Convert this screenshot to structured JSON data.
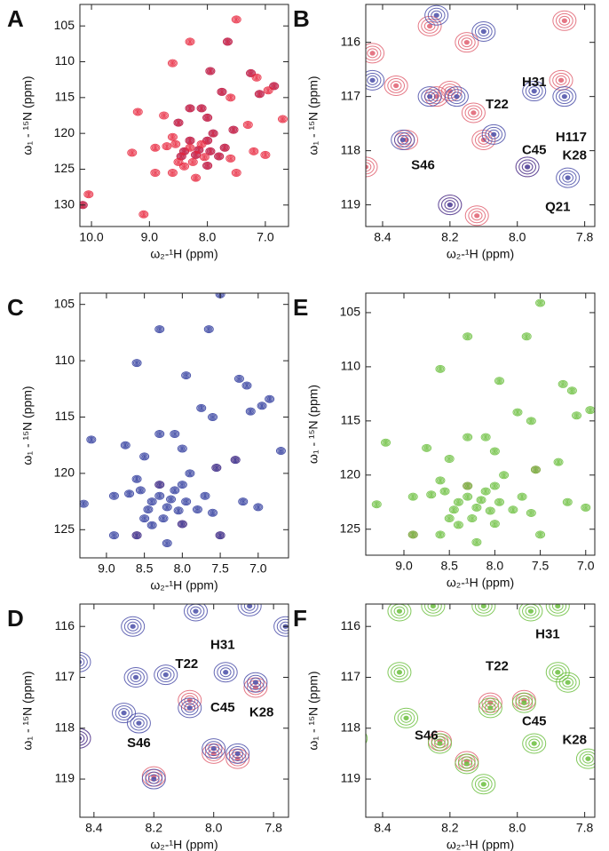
{
  "chart_data": [
    {
      "type": "contour",
      "panel": "A",
      "xlabel": "ω₂-¹H (ppm)",
      "ylabel": "ω₁ - ¹⁵N (ppm)",
      "xlim": [
        10.2,
        6.6
      ],
      "ylim": [
        102,
        133
      ],
      "xticks": [
        {
          "value": 10,
          "label": "10.0"
        },
        {
          "value": 9,
          "label": "9.0"
        },
        {
          "value": 8,
          "label": "8.0"
        },
        {
          "value": 7,
          "label": "7.0"
        }
      ],
      "yticks": [
        105,
        110,
        115,
        120,
        125,
        130
      ],
      "series": [
        {
          "color": "#3b3fa0",
          "x": [
            7.65,
            7.95,
            7.25,
            6.85,
            7.1,
            7.75,
            8.1,
            8.3,
            8.0,
            8.5,
            7.55,
            7.9,
            8.3,
            8.0,
            7.7,
            8.4,
            8.2,
            7.8,
            8.0,
            8.45,
            8.15,
            7.95,
            10.15
          ],
          "y": [
            107.2,
            111.3,
            111.6,
            113.4,
            114.5,
            114.2,
            116.5,
            116.5,
            117.8,
            118.5,
            119.5,
            120,
            121,
            121,
            122,
            122.5,
            123,
            123.2,
            124.5,
            123.2,
            122.3,
            122.5,
            130
          ]
        },
        {
          "color": "#e8243c",
          "x": [
            7.5,
            8.3,
            7.65,
            8.6,
            7.95,
            7.25,
            7.15,
            6.85,
            6.95,
            7.1,
            7.75,
            7.6,
            8.1,
            8.3,
            9.2,
            8.75,
            8.0,
            8.5,
            7.3,
            6.7,
            7.55,
            7.9,
            8.6,
            8.3,
            8.1,
            8.0,
            7.7,
            8.9,
            9.3,
            8.4,
            8.2,
            7.8,
            7.2,
            8.5,
            8.0,
            8.9,
            8.6,
            8.4,
            7.5,
            8.2,
            7.6,
            7.0,
            8.7,
            8.45,
            8.3,
            8.15,
            8.05,
            7.95,
            8.55,
            8.25,
            10.05,
            10.15,
            9.1
          ],
          "y": [
            104.1,
            107.2,
            107.2,
            110.2,
            111.3,
            111.6,
            112.2,
            113.4,
            114,
            114.5,
            114.2,
            115,
            116.5,
            116.5,
            117,
            117.5,
            117.8,
            118.5,
            118.8,
            118,
            119.5,
            120,
            120.5,
            121,
            121.5,
            121,
            122,
            122,
            122.7,
            122.5,
            123,
            123.2,
            122.5,
            124,
            124.5,
            125.5,
            125.5,
            124.6,
            125.5,
            126.2,
            123.5,
            123,
            121.8,
            123.2,
            122,
            122.3,
            123.3,
            122.5,
            121.5,
            124,
            128.5,
            130,
            131.3
          ]
        }
      ]
    },
    {
      "type": "contour",
      "panel": "B",
      "xlabel": "ω₂-¹H (ppm)",
      "ylabel": "ω₁ - ¹⁵N (ppm)",
      "xlim": [
        8.45,
        7.77
      ],
      "ylim": [
        115.3,
        119.4
      ],
      "xticks": [
        8.4,
        8.2,
        {
          "value": 8,
          "label": "8.0"
        },
        7.8
      ],
      "yticks": [
        116,
        117,
        118,
        119
      ],
      "series": [
        {
          "color": "#e06070",
          "x": [
            8.43,
            8.36,
            8.26,
            8.24,
            8.33,
            8.15,
            8.13,
            8.1,
            7.87,
            7.86,
            7.97,
            8.2,
            8.12,
            8.45,
            8.2
          ],
          "y": [
            116.2,
            116.8,
            115.7,
            117,
            117.8,
            116,
            117.3,
            117.8,
            116.7,
            115.6,
            118.3,
            119,
            119.2,
            118.3,
            116.9
          ]
        },
        {
          "color": "#4a4ea8",
          "x": [
            8.24,
            8.43,
            8.26,
            8.18,
            8.34,
            8.07,
            7.95,
            7.86,
            7.97,
            7.85,
            8.2,
            8.1
          ],
          "y": [
            115.5,
            116.7,
            117,
            117,
            117.8,
            117.7,
            116.9,
            117,
            118.3,
            118.5,
            119,
            115.8
          ]
        }
      ],
      "annotations": [
        {
          "text": "S46",
          "x": 8.28,
          "y": 118.28
        },
        {
          "text": "T22",
          "x": 8.06,
          "y": 117.15
        },
        {
          "text": "H31",
          "x": 7.95,
          "y": 116.74
        },
        {
          "text": "C45",
          "x": 7.95,
          "y": 118.0
        },
        {
          "text": "H117",
          "x": 7.84,
          "y": 117.76
        },
        {
          "text": "K28",
          "x": 7.83,
          "y": 118.1
        },
        {
          "text": "Q21",
          "x": 7.88,
          "y": 119.05
        }
      ]
    },
    {
      "type": "contour",
      "panel": "C",
      "xlabel": "ω₂-¹H (ppm)",
      "ylabel": "ω₁ - ¹⁵N (ppm)",
      "xlim": [
        9.35,
        6.6
      ],
      "ylim": [
        104,
        127.5
      ],
      "xticks": [
        {
          "value": 9,
          "label": "9.0"
        },
        8.5,
        {
          "value": 8,
          "label": "8.0"
        },
        7.5,
        {
          "value": 7,
          "label": "7.0"
        }
      ],
      "yticks": [
        105,
        110,
        115,
        120,
        125
      ],
      "series": [
        {
          "color": "#e06070",
          "x": [
            7.3,
            7.55,
            8.3,
            8.0,
            8.6,
            7.5
          ],
          "y": [
            118.8,
            119.5,
            121,
            124.5,
            125.5,
            125.5
          ]
        },
        {
          "color": "#2e3a9c",
          "x": [
            7.5,
            8.3,
            7.65,
            8.6,
            7.95,
            7.25,
            7.15,
            6.85,
            6.95,
            7.1,
            7.75,
            7.6,
            8.1,
            8.3,
            9.2,
            8.75,
            8.0,
            8.5,
            7.3,
            6.7,
            7.55,
            7.9,
            8.6,
            8.3,
            8.1,
            8.0,
            7.7,
            8.9,
            9.3,
            8.4,
            8.2,
            7.8,
            7.2,
            8.5,
            8.0,
            8.9,
            8.6,
            8.4,
            7.5,
            8.2,
            7.6,
            7.0,
            8.7,
            8.45,
            8.3,
            8.15,
            8.05,
            7.95,
            8.55,
            8.25
          ],
          "y": [
            104.1,
            107.2,
            107.2,
            110.2,
            111.3,
            111.6,
            112.2,
            113.4,
            114,
            114.5,
            114.2,
            115,
            116.5,
            116.5,
            117,
            117.5,
            117.8,
            118.5,
            118.8,
            118,
            119.5,
            120,
            120.5,
            121,
            121.5,
            121,
            122,
            122,
            122.7,
            122.5,
            123,
            123.2,
            122.5,
            124,
            124.5,
            125.5,
            125.5,
            124.6,
            125.5,
            126.2,
            123.5,
            123,
            121.8,
            123.2,
            122,
            122.3,
            123.3,
            122.5,
            121.5,
            124
          ]
        }
      ]
    },
    {
      "type": "contour",
      "panel": "E",
      "xlabel": "ω₂-¹H (ppm)",
      "ylabel": "ω₁ - ¹⁵N (ppm)",
      "xlim": [
        9.42,
        6.9
      ],
      "ylim": [
        103.2,
        127.4
      ],
      "xticks": [
        {
          "value": 9,
          "label": "9.0"
        },
        8.5,
        {
          "value": 8,
          "label": "8.0"
        },
        7.5,
        {
          "value": 7,
          "label": "7.0"
        }
      ],
      "yticks": [
        105,
        110,
        115,
        120,
        125
      ],
      "series": [
        {
          "color": "#e06070",
          "x": [
            8.9,
            8.3,
            7.55
          ],
          "y": [
            125.5,
            121,
            119.5
          ]
        },
        {
          "color": "#6cbf3f",
          "x": [
            7.5,
            8.3,
            7.65,
            8.6,
            7.95,
            7.25,
            7.15,
            6.95,
            7.1,
            7.75,
            7.6,
            8.1,
            8.3,
            9.2,
            8.75,
            8.0,
            8.5,
            7.3,
            7.55,
            7.9,
            8.6,
            8.3,
            8.1,
            8.0,
            7.7,
            8.9,
            9.3,
            8.4,
            8.2,
            7.8,
            7.2,
            8.5,
            8.0,
            8.9,
            8.6,
            8.4,
            7.5,
            8.2,
            7.6,
            7.0,
            8.7,
            8.45,
            8.3,
            8.15,
            8.05,
            7.95,
            8.55,
            8.25
          ],
          "y": [
            104.1,
            107.2,
            107.2,
            110.2,
            111.3,
            111.6,
            112.2,
            114,
            114.5,
            114.2,
            115,
            116.5,
            116.5,
            117,
            117.5,
            117.8,
            118.5,
            118.8,
            119.5,
            120,
            120.5,
            121,
            121.5,
            121,
            122,
            122,
            122.7,
            122.5,
            123,
            123.2,
            122.5,
            124,
            124.5,
            125.5,
            125.5,
            124.6,
            125.5,
            126.2,
            123.5,
            123,
            121.8,
            123.2,
            122,
            122.3,
            123.3,
            122.5,
            121.5,
            124
          ]
        }
      ]
    },
    {
      "type": "contour",
      "panel": "D",
      "xlabel": "ω₂-¹H (ppm)",
      "ylabel": "ω₁ - ¹⁵N (ppm)",
      "xlim": [
        8.447,
        7.75
      ],
      "ylim": [
        115.56,
        119.75
      ],
      "xticks": [
        8.4,
        8.2,
        {
          "value": 8,
          "label": "8.0"
        },
        7.8
      ],
      "yticks": [
        116,
        117,
        118,
        119
      ],
      "series": [
        {
          "color": "#e06070",
          "x": [
            8.08,
            8.0,
            7.92,
            8.2,
            7.86,
            8.45
          ],
          "y": [
            117.45,
            118.5,
            118.6,
            118.95,
            117.2,
            118.2
          ]
        },
        {
          "color": "#4a4ea8",
          "x": [
            8.45,
            8.27,
            8.06,
            7.88,
            8.26,
            8.16,
            7.96,
            7.86,
            8.3,
            8.25,
            8.08,
            8.0,
            7.92,
            8.2,
            8.45,
            7.76
          ],
          "y": [
            116.7,
            116,
            115.7,
            115.6,
            117,
            116.95,
            116.9,
            117.1,
            117.7,
            117.9,
            117.6,
            118.4,
            118.5,
            119,
            118.2,
            116
          ]
        }
      ],
      "annotations": [
        {
          "text": "H31",
          "x": 7.97,
          "y": 116.37
        },
        {
          "text": "T22",
          "x": 8.09,
          "y": 116.75
        },
        {
          "text": "C45",
          "x": 7.97,
          "y": 117.6
        },
        {
          "text": "K28",
          "x": 7.84,
          "y": 117.7
        },
        {
          "text": "S46",
          "x": 8.25,
          "y": 118.3
        }
      ]
    },
    {
      "type": "contour",
      "panel": "F",
      "xlabel": "ω₂-¹H (ppm)",
      "ylabel": "ω₁ - ¹⁵N (ppm)",
      "xlim": [
        8.45,
        7.77
      ],
      "ylim": [
        115.56,
        119.75
      ],
      "xticks": [
        8.4,
        8.2,
        {
          "value": 8,
          "label": "8.0"
        },
        7.8
      ],
      "yticks": [
        116,
        117,
        118,
        119
      ],
      "series": [
        {
          "color": "#e06070",
          "x": [
            8.08,
            7.98,
            8.15,
            8.23
          ],
          "y": [
            117.5,
            117.45,
            118.65,
            118.25
          ]
        },
        {
          "color": "#6cbf3f",
          "x": [
            8.35,
            8.25,
            8.1,
            7.96,
            7.88,
            8.35,
            7.88,
            7.85,
            8.08,
            7.98,
            8.33,
            8.23,
            8.15,
            8.1,
            7.95,
            8.48,
            7.79
          ],
          "y": [
            115.7,
            115.6,
            115.6,
            115.7,
            115.6,
            116.9,
            116.9,
            117.1,
            117.6,
            117.5,
            117.8,
            118.3,
            118.7,
            119.1,
            118.3,
            118.2,
            118.6
          ]
        }
      ],
      "annotations": [
        {
          "text": "H31",
          "x": 7.91,
          "y": 116.16
        },
        {
          "text": "T22",
          "x": 8.06,
          "y": 116.79
        },
        {
          "text": "C45",
          "x": 7.95,
          "y": 117.87
        },
        {
          "text": "K28",
          "x": 7.83,
          "y": 118.24
        },
        {
          "text": "S46",
          "x": 8.27,
          "y": 118.15
        }
      ]
    }
  ]
}
